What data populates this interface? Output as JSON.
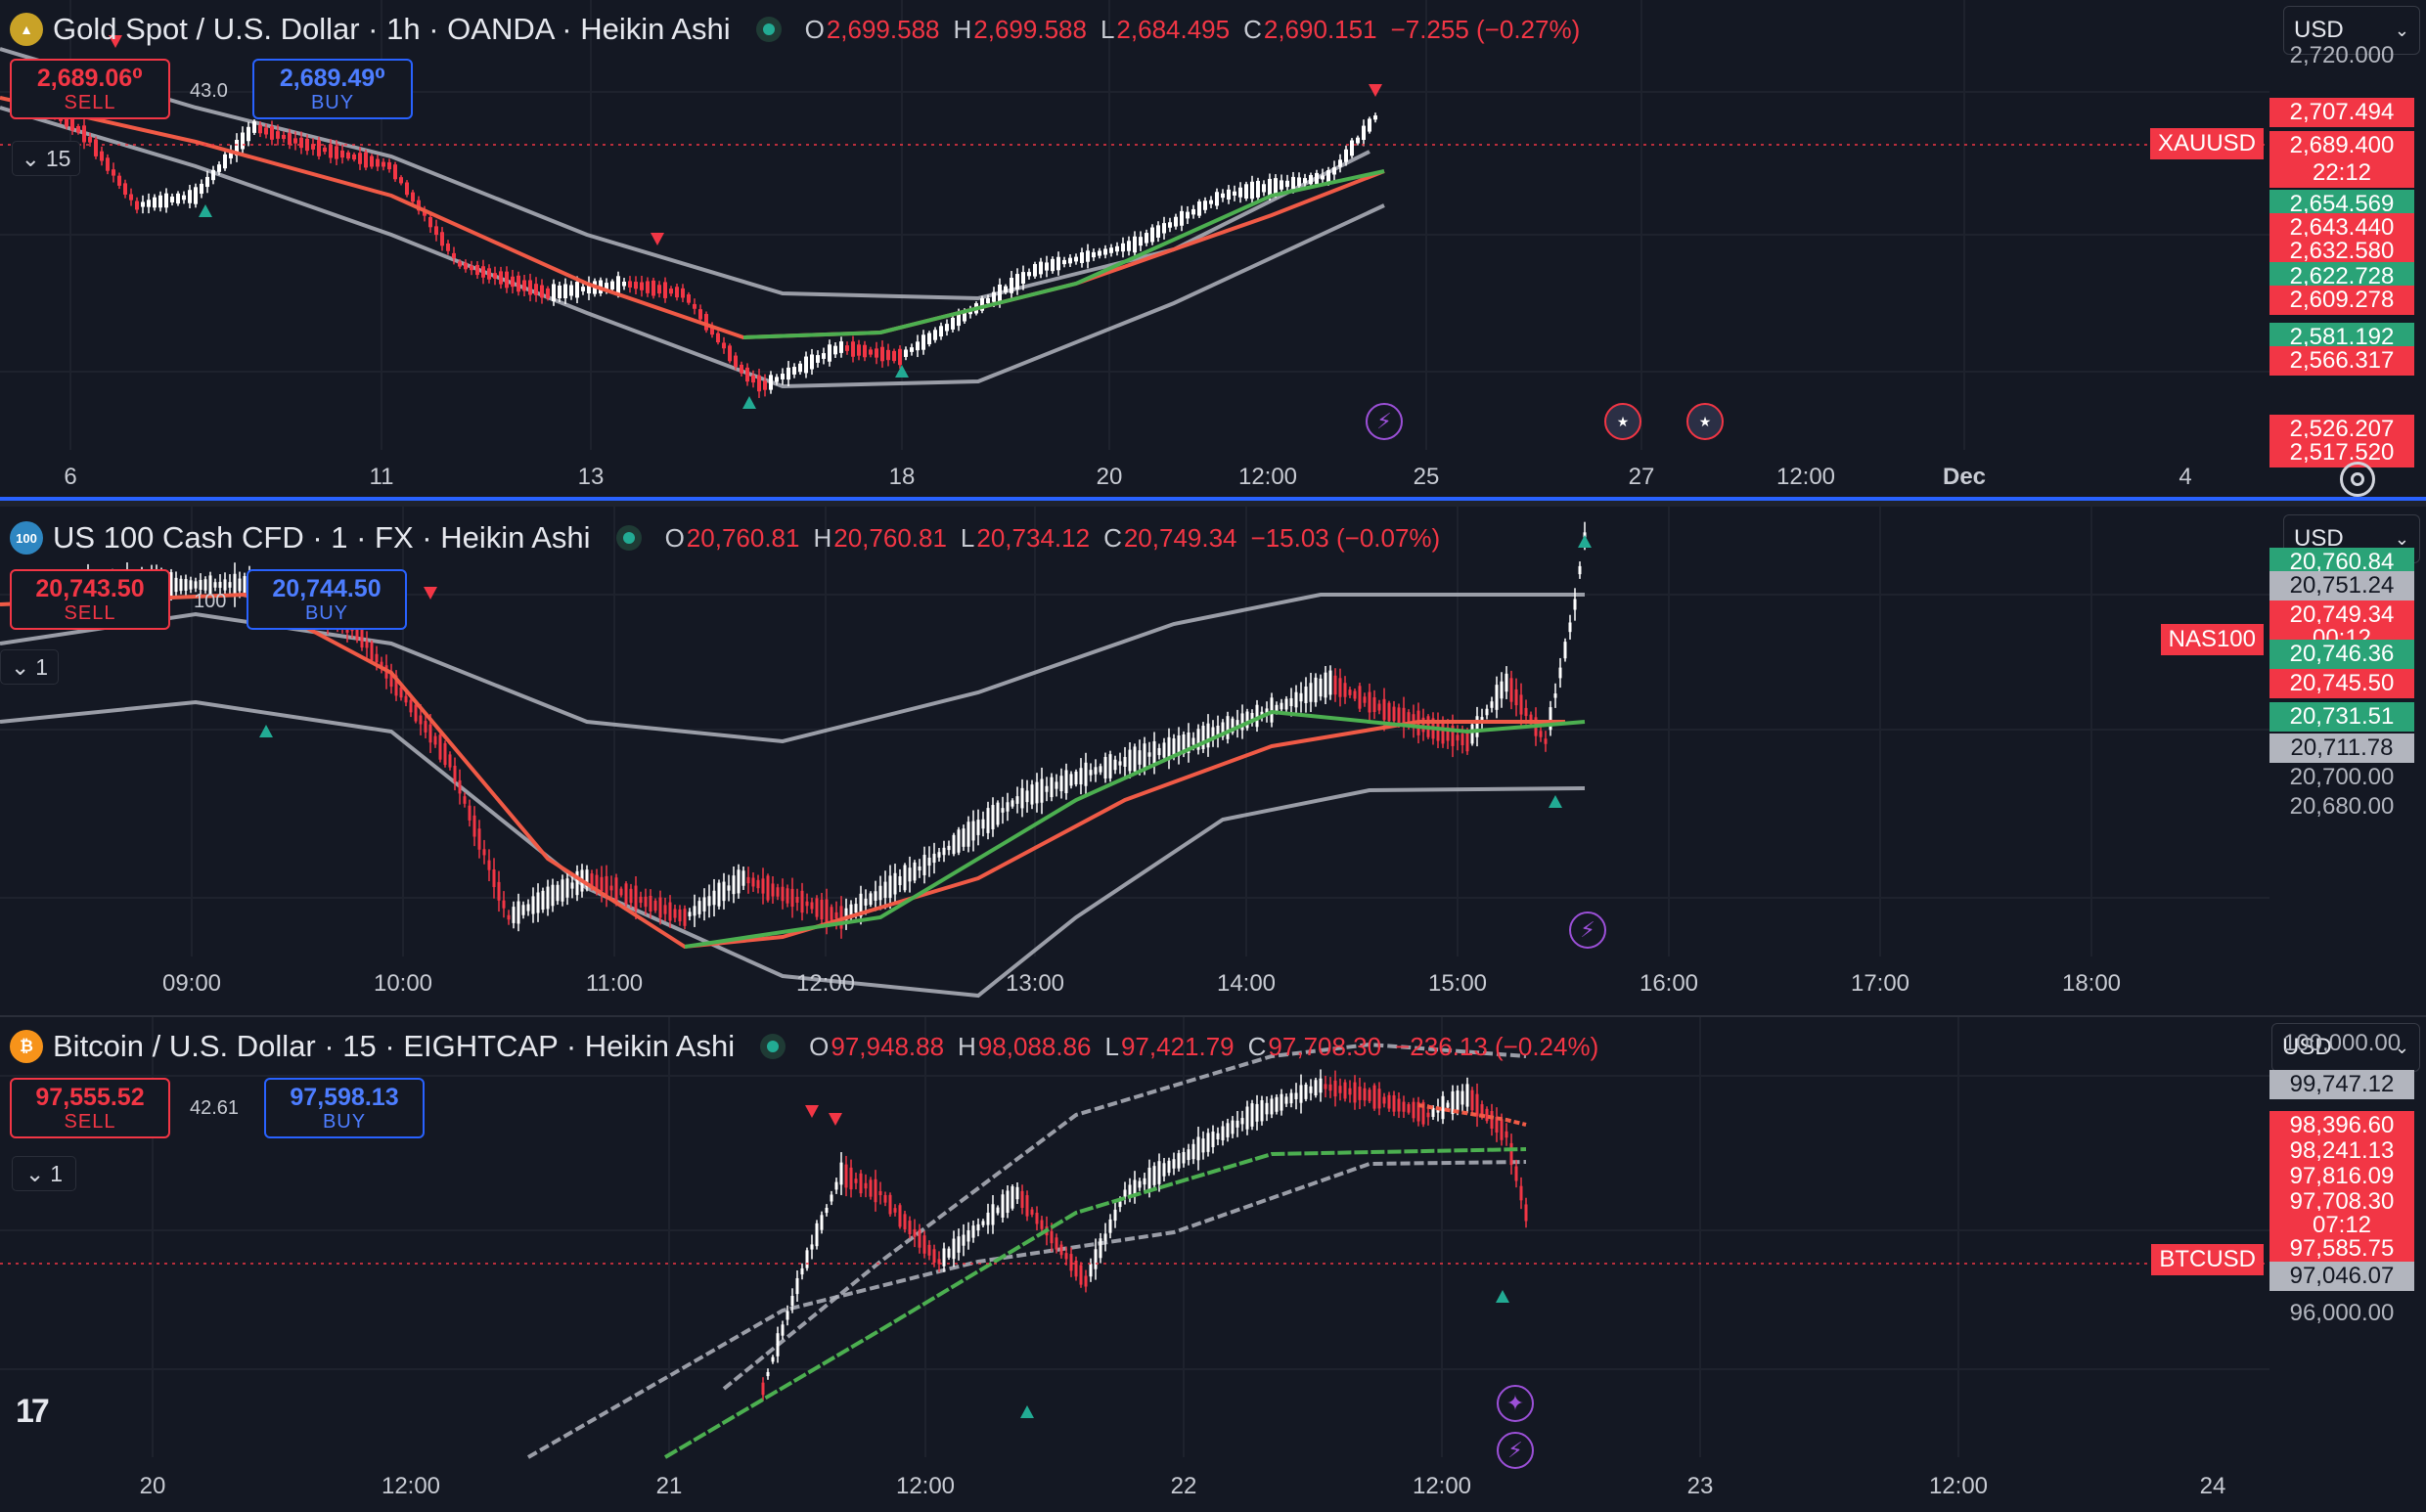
{
  "panes": [
    {
      "id": "gold",
      "icon": "gold-bars-icon",
      "icon_color": "#c9a227",
      "icon_glyph": "▲",
      "title": "Gold Spot / U.S. Dollar · 1h · OANDA · Heikin Ashi",
      "ohlc": {
        "o": "2,699.588",
        "h": "2,699.588",
        "l": "2,684.495",
        "c": "2,690.151",
        "chg": "−7.255 (−0.27%)"
      },
      "sell": {
        "price": "2,689.06⁰",
        "label": "SELL"
      },
      "buy": {
        "price": "2,689.49⁰",
        "label": "BUY"
      },
      "spread": "43.0",
      "interval": "15",
      "currency": "USD",
      "symbol_tag": "XAUUSD",
      "price_labels": [
        {
          "text": "2,720.000",
          "style": "axis"
        },
        {
          "text": "2,707.494",
          "style": "red"
        },
        {
          "text": "2,689.400",
          "style": "red"
        },
        {
          "text": "22:12",
          "style": "red"
        },
        {
          "text": "2,654.569",
          "style": "green"
        },
        {
          "text": "2,643.440",
          "style": "red"
        },
        {
          "text": "2,632.580",
          "style": "red"
        },
        {
          "text": "2,622.728",
          "style": "green"
        },
        {
          "text": "2,609.278",
          "style": "red"
        },
        {
          "text": "2,581.192",
          "style": "green"
        },
        {
          "text": "2,566.317",
          "style": "red"
        },
        {
          "text": "2,526.207",
          "style": "red"
        },
        {
          "text": "2,517.520",
          "style": "red"
        }
      ],
      "time_labels": [
        "6",
        "11",
        "13",
        "18",
        "20",
        "12:00",
        "25",
        "27",
        "12:00",
        "Dec",
        "4"
      ]
    },
    {
      "id": "nas",
      "icon": "us100-icon",
      "icon_color": "#2e86c1",
      "icon_glyph": "100",
      "title": "US 100 Cash CFD · 1 · FX  · Heikin Ashi",
      "ohlc": {
        "o": "20,760.81",
        "h": "20,760.81",
        "l": "20,734.12",
        "c": "20,749.34",
        "chg": "−15.03 (−0.07%)"
      },
      "sell": {
        "price": "20,743.50",
        "label": "SELL"
      },
      "buy": {
        "price": "20,744.50",
        "label": "BUY"
      },
      "spread": "100",
      "interval": "1",
      "currency": "USD",
      "symbol_tag": "NAS100",
      "price_labels": [
        {
          "text": "20,760.84",
          "style": "green"
        },
        {
          "text": "20,751.24",
          "style": "gray"
        },
        {
          "text": "20,749.34",
          "style": "red"
        },
        {
          "text": "00:12",
          "style": "red"
        },
        {
          "text": "20,746.36",
          "style": "green"
        },
        {
          "text": "20,745.50",
          "style": "red"
        },
        {
          "text": "20,731.51",
          "style": "green"
        },
        {
          "text": "20,711.78",
          "style": "gray"
        },
        {
          "text": "20,700.00",
          "style": "axis"
        },
        {
          "text": "20,680.00",
          "style": "axis"
        }
      ],
      "time_labels": [
        "09:00",
        "10:00",
        "11:00",
        "12:00",
        "13:00",
        "14:00",
        "15:00",
        "16:00",
        "17:00",
        "18:00"
      ]
    },
    {
      "id": "btc",
      "icon": "bitcoin-icon",
      "icon_color": "#f7931a",
      "icon_glyph": "₿",
      "title": "Bitcoin / U.S. Dollar · 15 · EIGHTCAP · Heikin Ashi",
      "ohlc": {
        "o": "97,948.88",
        "h": "98,088.86",
        "l": "97,421.79",
        "c": "97,708.30",
        "chg": "−236.13 (−0.24%)"
      },
      "sell": {
        "price": "97,555.52",
        "label": "SELL"
      },
      "buy": {
        "price": "97,598.13",
        "label": "BUY"
      },
      "spread": "42.61",
      "interval": "1",
      "currency": "USD",
      "symbol_tag": "BTCUSD",
      "price_labels": [
        {
          "text": "100,000.00",
          "style": "axis"
        },
        {
          "text": "99,747.12",
          "style": "gray"
        },
        {
          "text": "98,396.60",
          "style": "red"
        },
        {
          "text": "98,241.13",
          "style": "red"
        },
        {
          "text": "97,816.09",
          "style": "red"
        },
        {
          "text": "97,708.30",
          "style": "red"
        },
        {
          "text": "07:12",
          "style": "red"
        },
        {
          "text": "97,585.75",
          "style": "red"
        },
        {
          "text": "97,046.07",
          "style": "gray"
        },
        {
          "text": "96,000.00",
          "style": "axis"
        }
      ],
      "time_labels": [
        "20",
        "12:00",
        "21",
        "12:00",
        "22",
        "12:00",
        "23",
        "12:00",
        "24"
      ]
    }
  ],
  "colors": {
    "up": "#ffffff",
    "down": "#f23645",
    "band": "#b2b5be",
    "ma_green": "#4caf50",
    "ma_red": "#f05a46",
    "bg": "#141823"
  }
}
